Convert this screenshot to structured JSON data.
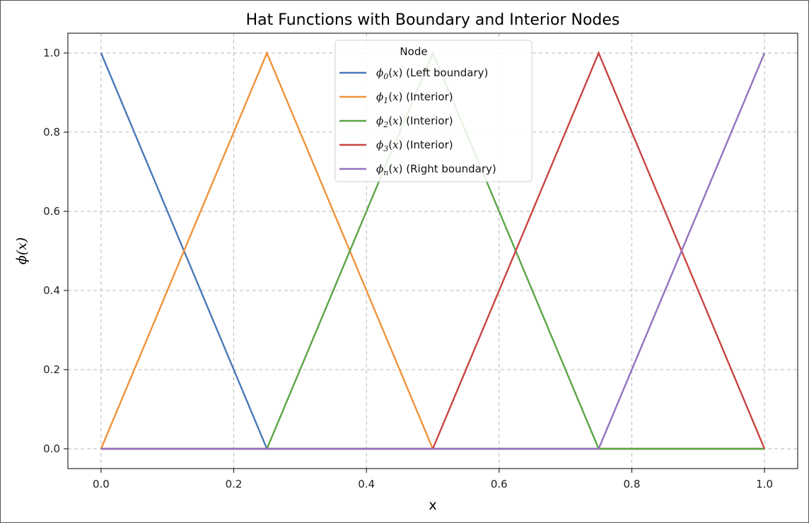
{
  "chart_data": {
    "type": "line",
    "title": "Hat Functions with Boundary and Interior Nodes",
    "xlabel": "x",
    "ylabel": "ϕ(x)",
    "xlim": [
      -0.05,
      1.05
    ],
    "ylim": [
      -0.05,
      1.05
    ],
    "xticks": [
      0.0,
      0.2,
      0.4,
      0.6,
      0.8,
      1.0
    ],
    "yticks": [
      0.0,
      0.2,
      0.4,
      0.6,
      0.8,
      1.0
    ],
    "xtick_labels": [
      "0.0",
      "0.2",
      "0.4",
      "0.6",
      "0.8",
      "1.0"
    ],
    "ytick_labels": [
      "0.0",
      "0.2",
      "0.4",
      "0.6",
      "0.8",
      "1.0"
    ],
    "grid": true,
    "legend": {
      "title": "Node",
      "placement": "top-center"
    },
    "series": [
      {
        "name": "ϕ0(x) (Left boundary)",
        "sub": "0",
        "desc": "(Left boundary)",
        "color": "#4878b8",
        "x": [
          0.0,
          0.25,
          1.0
        ],
        "y": [
          1.0,
          0.0,
          0.0
        ]
      },
      {
        "name": "ϕ1(x) (Interior)",
        "sub": "1",
        "desc": "(Interior)",
        "color": "#f0923a",
        "x": [
          0.0,
          0.25,
          0.5,
          1.0
        ],
        "y": [
          0.0,
          1.0,
          0.0,
          0.0
        ]
      },
      {
        "name": "ϕ2(x) (Interior)",
        "sub": "2",
        "desc": "(Interior)",
        "color": "#5aa544",
        "x": [
          0.0,
          0.25,
          0.5,
          0.75,
          1.0
        ],
        "y": [
          0.0,
          0.0,
          1.0,
          0.0,
          0.0
        ]
      },
      {
        "name": "ϕ3(x) (Interior)",
        "sub": "3",
        "desc": "(Interior)",
        "color": "#c94442",
        "x": [
          0.0,
          0.5,
          0.75,
          1.0
        ],
        "y": [
          0.0,
          0.0,
          1.0,
          0.0
        ]
      },
      {
        "name": "ϕn(x) (Right boundary)",
        "sub": "n",
        "desc": "(Right boundary)",
        "color": "#9372bf",
        "x": [
          0.0,
          0.75,
          1.0
        ],
        "y": [
          0.0,
          0.0,
          1.0
        ]
      }
    ]
  }
}
